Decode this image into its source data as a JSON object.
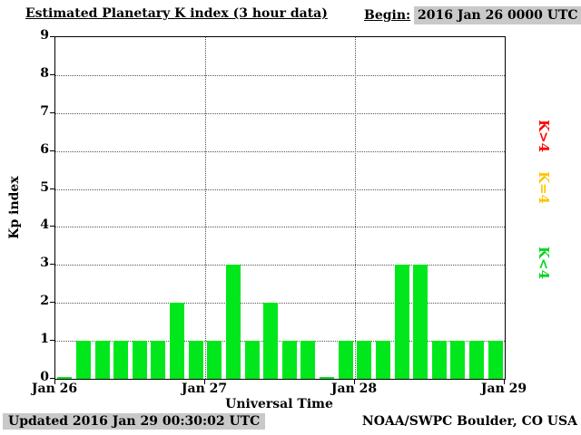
{
  "header": {
    "title": "Estimated Planetary K index (3 hour data)",
    "begin_label": "Begin:",
    "begin_value": "2016 Jan 26 0000 UTC"
  },
  "footer": {
    "updated": "Updated 2016 Jan 29 00:30:02 UTC",
    "credit": "NOAA/SWPC Boulder, CO USA"
  },
  "chart_data": {
    "type": "bar",
    "title": "Estimated Planetary K index (3 hour data)",
    "xlabel": "Universal Time",
    "ylabel": "Kp index",
    "ylim": [
      0,
      9
    ],
    "yticks": [
      0,
      1,
      2,
      3,
      4,
      5,
      6,
      7,
      8,
      9
    ],
    "xticks": [
      "Jan 26",
      "Jan 27",
      "Jan 28",
      "Jan 29"
    ],
    "grid": "dotted horizontal lines at each integer, dotted vertical lines at day boundaries",
    "hours_per_bar": 3,
    "bar_color": "#00e81c",
    "values": [
      0,
      1,
      1,
      1,
      1,
      1,
      2,
      1,
      1,
      3,
      1,
      2,
      1,
      1,
      0,
      1,
      1,
      1,
      3,
      3,
      1,
      1,
      1,
      1
    ],
    "legend": [
      {
        "label": "K>4",
        "color": "#ff0000"
      },
      {
        "label": "K=4",
        "color": "#ffc400"
      },
      {
        "label": "K<4",
        "color": "#00d41c"
      }
    ],
    "legend_position": "right, rotated vertical"
  },
  "colors": {
    "background": "#ffffff",
    "grey_box": "#c9c9c9",
    "axis": "#000000"
  }
}
